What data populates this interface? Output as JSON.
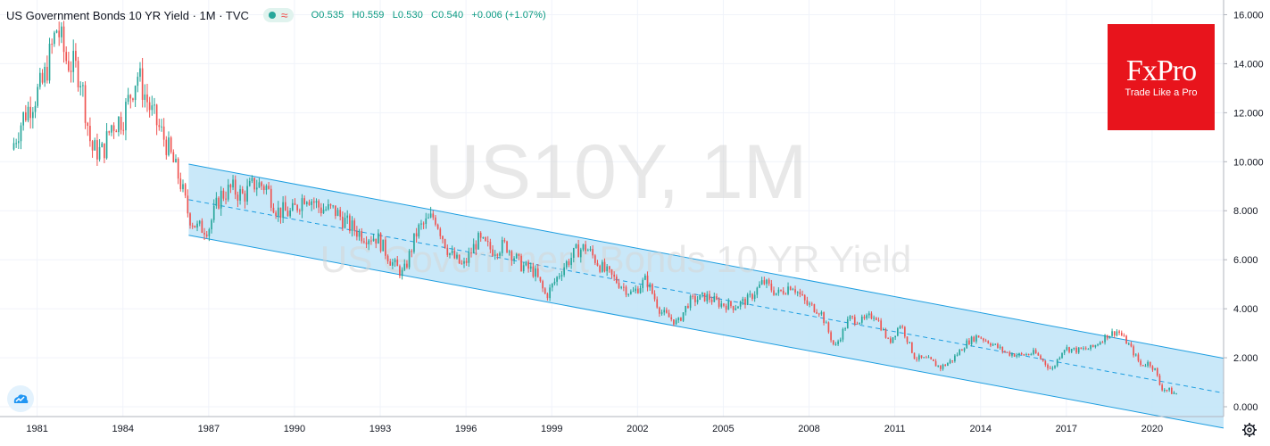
{
  "header": {
    "title": "US Government Bonds 10 YR Yield · 1M · TVC",
    "open": "O0.535",
    "high": "H0.559",
    "low": "L0.530",
    "close": "C0.540",
    "change": "+0.006 (+1.07%)"
  },
  "logo": {
    "brand": "FxPro",
    "slogan": "Trade Like a Pro",
    "color": "#e8141c"
  },
  "watermark": {
    "symbol": "US10Y, 1M",
    "description": "US Government Bonds 10 YR Yield"
  },
  "icons": {
    "corner": "tradingview-cloud-icon",
    "settings": "gear-icon"
  },
  "colors": {
    "up": "#26a69a",
    "down": "#ef5350",
    "channel_fill": "#bfe4f8",
    "channel_line": "#1e9ee0"
  },
  "chart_data": {
    "type": "candlestick",
    "title": "US Government Bonds 10 YR Yield",
    "interval": "1M",
    "source": "TVC",
    "x_tick_labels": [
      "1981",
      "1984",
      "1987",
      "1990",
      "1993",
      "1996",
      "1999",
      "2002",
      "2005",
      "2008",
      "2011",
      "2014",
      "2017",
      "2020"
    ],
    "y_tick_labels": [
      "16.000",
      "14.000",
      "12.000",
      "10.000",
      "8.000",
      "6.000",
      "4.000",
      "2.000",
      "0.000"
    ],
    "xlim": [
      1979.7,
      2022.5
    ],
    "ylim": [
      -0.4,
      16.6
    ],
    "y_axis_position": "right",
    "grid": true,
    "last_bar": {
      "open": 0.535,
      "high": 0.559,
      "low": 0.53,
      "close": 0.54,
      "change": 0.006,
      "change_pct": 1.07
    },
    "yield_path": [
      [
        1980.1,
        10.5
      ],
      [
        1980.5,
        11.8
      ],
      [
        1980.9,
        12.6
      ],
      [
        1981.2,
        13.2
      ],
      [
        1981.7,
        15.5
      ],
      [
        1982.0,
        14.2
      ],
      [
        1982.5,
        13.6
      ],
      [
        1982.9,
        10.5
      ],
      [
        1983.3,
        10.4
      ],
      [
        1983.6,
        11.5
      ],
      [
        1984.0,
        11.8
      ],
      [
        1984.5,
        13.6
      ],
      [
        1985.0,
        12.0
      ],
      [
        1985.5,
        10.8
      ],
      [
        1986.0,
        9.2
      ],
      [
        1986.3,
        7.8
      ],
      [
        1986.6,
        7.3
      ],
      [
        1987.0,
        7.3
      ],
      [
        1987.4,
        8.6
      ],
      [
        1987.8,
        8.9
      ],
      [
        1988.2,
        8.6
      ],
      [
        1988.6,
        9.1
      ],
      [
        1989.0,
        9.0
      ],
      [
        1989.4,
        8.0
      ],
      [
        1989.9,
        7.9
      ],
      [
        1990.4,
        8.7
      ],
      [
        1990.9,
        8.1
      ],
      [
        1991.4,
        8.0
      ],
      [
        1991.9,
        7.4
      ],
      [
        1992.4,
        7.0
      ],
      [
        1992.9,
        6.9
      ],
      [
        1993.4,
        5.9
      ],
      [
        1993.8,
        5.4
      ],
      [
        1994.3,
        7.2
      ],
      [
        1994.9,
        7.8
      ],
      [
        1995.4,
        6.3
      ],
      [
        1995.9,
        5.7
      ],
      [
        1996.4,
        6.8
      ],
      [
        1996.9,
        6.4
      ],
      [
        1997.4,
        6.6
      ],
      [
        1997.9,
        5.8
      ],
      [
        1998.4,
        5.5
      ],
      [
        1998.8,
        4.5
      ],
      [
        1999.4,
        5.7
      ],
      [
        1999.9,
        6.4
      ],
      [
        2000.2,
        6.5
      ],
      [
        2000.8,
        5.6
      ],
      [
        2001.3,
        5.1
      ],
      [
        2001.8,
        4.6
      ],
      [
        2002.3,
        5.2
      ],
      [
        2002.8,
        3.9
      ],
      [
        2003.4,
        3.4
      ],
      [
        2003.8,
        4.3
      ],
      [
        2004.4,
        4.5
      ],
      [
        2004.9,
        4.2
      ],
      [
        2005.4,
        4.1
      ],
      [
        2005.9,
        4.4
      ],
      [
        2006.4,
        5.1
      ],
      [
        2006.9,
        4.6
      ],
      [
        2007.4,
        5.0
      ],
      [
        2007.9,
        4.2
      ],
      [
        2008.4,
        3.9
      ],
      [
        2008.9,
        2.4
      ],
      [
        2009.4,
        3.6
      ],
      [
        2009.9,
        3.5
      ],
      [
        2010.3,
        3.8
      ],
      [
        2010.8,
        2.6
      ],
      [
        2011.2,
        3.4
      ],
      [
        2011.7,
        2.0
      ],
      [
        2012.2,
        1.9
      ],
      [
        2012.6,
        1.6
      ],
      [
        2013.0,
        1.9
      ],
      [
        2013.5,
        2.6
      ],
      [
        2013.9,
        2.9
      ],
      [
        2014.5,
        2.5
      ],
      [
        2014.9,
        2.2
      ],
      [
        2015.4,
        2.1
      ],
      [
        2015.9,
        2.2
      ],
      [
        2016.5,
        1.5
      ],
      [
        2016.9,
        2.4
      ],
      [
        2017.4,
        2.3
      ],
      [
        2017.9,
        2.4
      ],
      [
        2018.4,
        2.9
      ],
      [
        2018.8,
        3.1
      ],
      [
        2019.2,
        2.5
      ],
      [
        2019.6,
        1.7
      ],
      [
        2019.9,
        1.8
      ],
      [
        2020.1,
        1.5
      ],
      [
        2020.3,
        0.8
      ],
      [
        2020.7,
        0.6
      ],
      [
        2020.85,
        0.54
      ]
    ],
    "annotations": [
      {
        "type": "regression_channel",
        "x_start": 1986.3,
        "x_end": 2022.5,
        "upper": [
          9.9,
          1.98
        ],
        "center": [
          8.45,
          0.56
        ],
        "lower": [
          7.0,
          -0.87
        ]
      }
    ]
  }
}
